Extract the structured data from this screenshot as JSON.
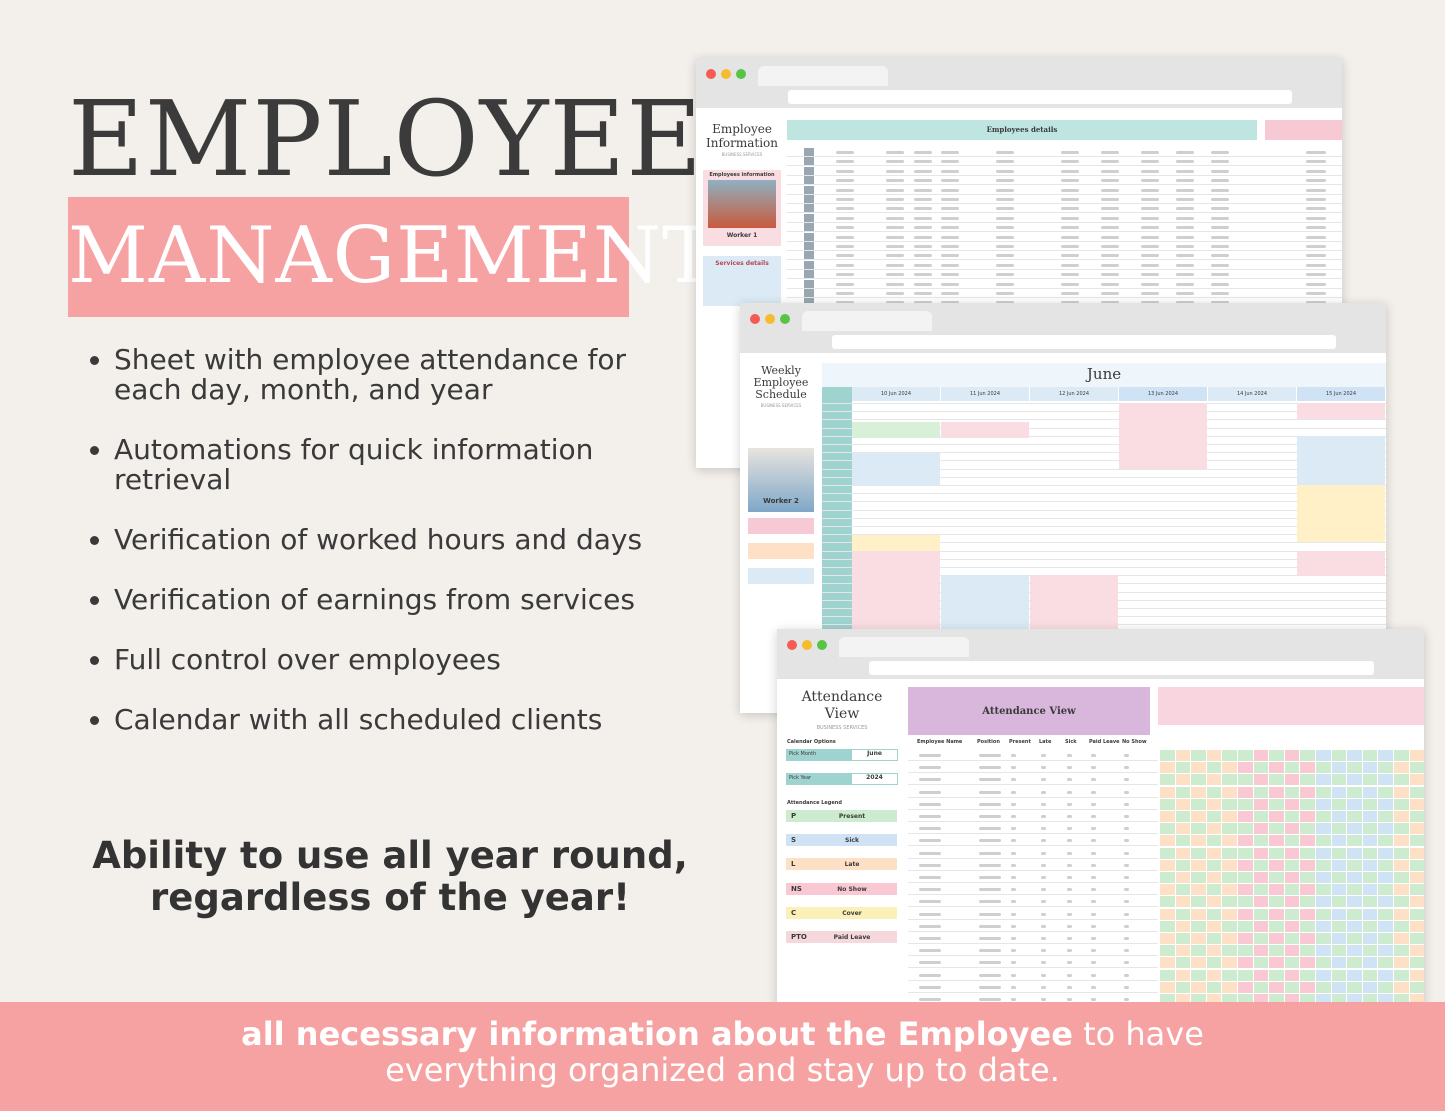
{
  "header": {
    "title": "EMPLOYEE",
    "subtitle": "MANAGEMENT"
  },
  "features": [
    "Sheet with employee attendance for each day, month, and year",
    "Automations for quick information retrieval",
    "Verification of worked hours and days",
    "Verification of earnings from services",
    "Full control over employees",
    "Calendar with all scheduled clients"
  ],
  "tagline": [
    "Ability to use all year round,",
    "regardless of the year!"
  ],
  "footer": {
    "bold": "all necessary information about the Employee",
    "rest": "to have everything organized and stay up to date."
  },
  "screens": {
    "info": {
      "title": "Employee Information",
      "subtitle": "BUSINESS SERVICES",
      "banner": "Employees details",
      "card": "Employees information",
      "worker": "Worker 1",
      "section": "Services details"
    },
    "schedule": {
      "title": "Weekly Employee Schedule",
      "subtitle": "BUSINESS SERVICES",
      "month": "June",
      "days": [
        "10 Jun 2024",
        "11 Jun 2024",
        "12 Jun 2024",
        "13 Jun 2024",
        "14 Jun 2024",
        "15 Jun 2024"
      ],
      "worker": "Worker 2"
    },
    "attendance": {
      "title": "Attendance View",
      "subtitle": "BUSINESS SERVICES",
      "banner": "Attendance View",
      "options": "Calendar Options",
      "month_label": "Pick Month",
      "month": "June",
      "year_label": "Pick Year",
      "year": "2024",
      "legend_title": "Attendance Legend",
      "legend": [
        {
          "code": "P",
          "label": "Present"
        },
        {
          "code": "S",
          "label": "Sick"
        },
        {
          "code": "L",
          "label": "Late"
        },
        {
          "code": "NS",
          "label": "No Show"
        },
        {
          "code": "C",
          "label": "Cover"
        },
        {
          "code": "PTO",
          "label": "Paid Leave"
        }
      ],
      "columns": [
        "Employee Name",
        "Position",
        "Present",
        "Late",
        "Sick",
        "Paid Leave",
        "No Show"
      ]
    }
  }
}
